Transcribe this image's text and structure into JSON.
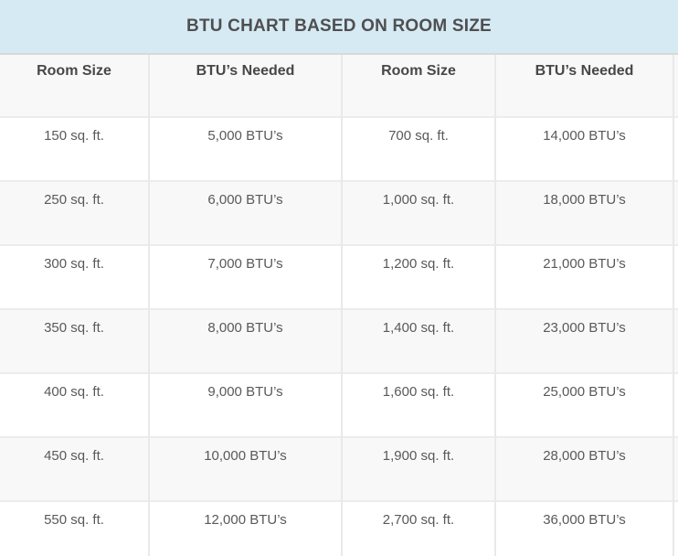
{
  "title": "BTU CHART BASED ON ROOM SIZE",
  "colors": {
    "title_bg": "#d6eaf4",
    "title_text": "#4f4f4f",
    "header_bg": "#f8f8f8",
    "row_bg": "#ffffff",
    "row_alt_bg": "#f8f8f8",
    "cell_text": "#595959",
    "divider": "#e9e9e9"
  },
  "chart_data": {
    "type": "table",
    "title": "BTU CHART BASED ON ROOM SIZE",
    "columns": [
      "Room Size",
      "BTU’s Needed",
      "Room Size",
      "BTU’s Needed"
    ],
    "rows": [
      [
        "150 sq. ft.",
        "5,000 BTU’s",
        "700 sq. ft.",
        "14,000 BTU’s"
      ],
      [
        "250 sq. ft.",
        "6,000 BTU’s",
        "1,000 sq. ft.",
        "18,000 BTU’s"
      ],
      [
        "300 sq. ft.",
        "7,000 BTU’s",
        "1,200 sq. ft.",
        "21,000 BTU’s"
      ],
      [
        "350 sq. ft.",
        "8,000 BTU’s",
        "1,400 sq. ft.",
        "23,000 BTU’s"
      ],
      [
        "400 sq. ft.",
        "9,000 BTU’s",
        "1,600 sq. ft.",
        "25,000 BTU’s"
      ],
      [
        "450 sq. ft.",
        "10,000 BTU’s",
        "1,900 sq. ft.",
        "28,000 BTU’s"
      ],
      [
        "550 sq. ft.",
        "12,000 BTU’s",
        "2,700 sq. ft.",
        "36,000 BTU’s"
      ]
    ]
  }
}
